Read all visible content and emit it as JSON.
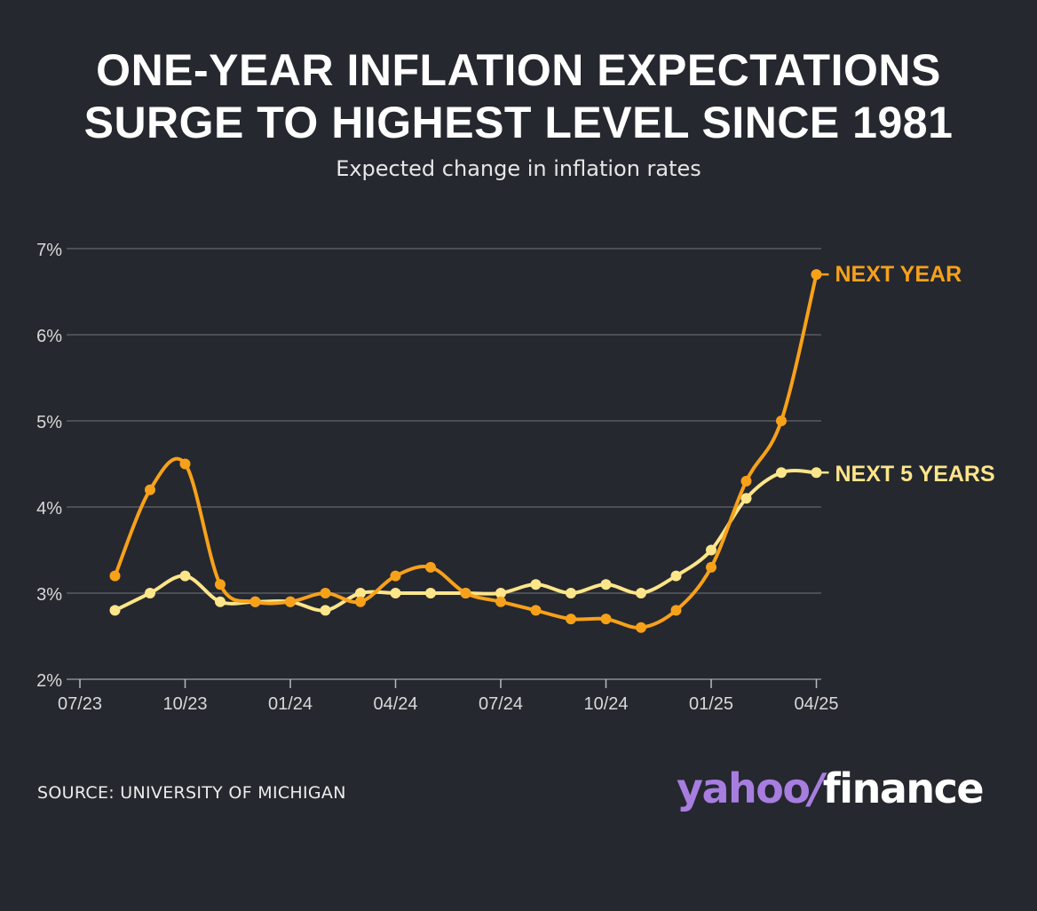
{
  "title_line1": "ONE-YEAR INFLATION EXPECTATIONS",
  "title_line2": "SURGE TO HIGHEST LEVEL SINCE 1981",
  "subtitle": "Expected change in inflation rates",
  "source": "SOURCE: UNIVERSITY OF MICHIGAN",
  "brand": {
    "part1": "yahoo",
    "slash": "/",
    "part2": "finance"
  },
  "colors": {
    "background": "#25282e",
    "next_year": "#f7a11a",
    "next_5_years": "#fde58a",
    "grid": "#4b4e55",
    "tick_text": "#d9d9d9",
    "brand_purple": "#a77ee0"
  },
  "chart_data": {
    "type": "line",
    "x_months": [
      "08/23",
      "09/23",
      "10/23",
      "11/23",
      "12/23",
      "01/24",
      "02/24",
      "03/24",
      "04/24",
      "05/24",
      "06/24",
      "07/24",
      "08/24",
      "09/24",
      "10/24",
      "11/24",
      "12/24",
      "01/25",
      "02/25",
      "03/25",
      "04/25"
    ],
    "x_ticks": [
      "07/23",
      "10/23",
      "01/24",
      "04/24",
      "07/24",
      "10/24",
      "01/25",
      "04/25"
    ],
    "y_ticks": [
      "2%",
      "3%",
      "4%",
      "5%",
      "6%",
      "7%"
    ],
    "ylim": [
      2,
      7
    ],
    "grid": true,
    "legend": "inline-right",
    "series": [
      {
        "name": "NEXT YEAR",
        "color": "#f7a11a",
        "values": [
          3.2,
          4.2,
          4.5,
          3.1,
          2.9,
          2.9,
          3.0,
          2.9,
          3.2,
          3.3,
          3.0,
          2.9,
          2.8,
          2.7,
          2.7,
          2.6,
          2.8,
          3.3,
          4.3,
          5.0,
          6.7
        ]
      },
      {
        "name": "NEXT 5 YEARS",
        "color": "#fde58a",
        "values": [
          2.8,
          3.0,
          3.2,
          2.9,
          2.9,
          2.9,
          2.8,
          3.0,
          3.0,
          3.0,
          3.0,
          3.0,
          3.1,
          3.0,
          3.1,
          3.0,
          3.2,
          3.5,
          4.1,
          4.4,
          4.4
        ]
      }
    ]
  }
}
